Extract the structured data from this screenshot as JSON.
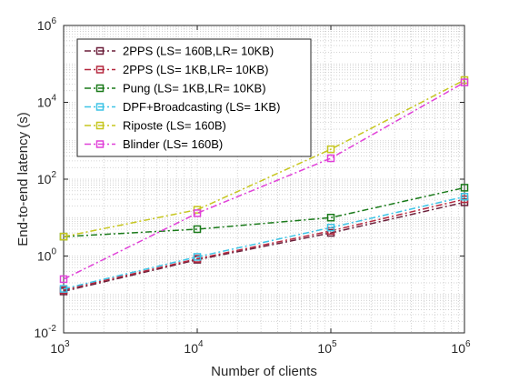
{
  "chart_data": {
    "type": "line",
    "title": "",
    "xlabel": "Number of clients",
    "ylabel": "End-to-end latency (s)",
    "x_scale": "log",
    "y_scale": "log",
    "xlim": [
      1000,
      1000000
    ],
    "ylim": [
      0.01,
      1000000
    ],
    "x_ticks": [
      {
        "base": "10",
        "exp": "3",
        "value": 1000
      },
      {
        "base": "10",
        "exp": "4",
        "value": 10000
      },
      {
        "base": "10",
        "exp": "5",
        "value": 100000
      },
      {
        "base": "10",
        "exp": "6",
        "value": 1000000
      }
    ],
    "y_ticks": [
      {
        "base": "10",
        "exp": "-2",
        "value": 0.01
      },
      {
        "base": "10",
        "exp": "0",
        "value": 1
      },
      {
        "base": "10",
        "exp": "2",
        "value": 100
      },
      {
        "base": "10",
        "exp": "4",
        "value": 10000
      },
      {
        "base": "10",
        "exp": "6",
        "value": 1000000
      }
    ],
    "grid": "minor-dotted",
    "legend_position": "top-left",
    "x": [
      1000,
      10000,
      100000,
      1000000
    ],
    "series": [
      {
        "name": "2PPS (LS= 160B,LR= 10KB)",
        "color": "#6b1f3a",
        "marker": "square",
        "line": "dash-dot",
        "values": [
          0.12,
          0.8,
          4.0,
          25.0
        ]
      },
      {
        "name": "2PPS (LS= 1KB,LR= 10KB)",
        "color": "#b5283f",
        "marker": "square",
        "line": "dash-dot",
        "values": [
          0.13,
          0.85,
          4.5,
          30.0
        ]
      },
      {
        "name": "Pung (LS= 1KB,LR= 10KB)",
        "color": "#1a7a1a",
        "marker": "square",
        "line": "dash-dot",
        "values": [
          3.2,
          5.0,
          10.0,
          60.0
        ]
      },
      {
        "name": "DPF+Broadcasting (LS= 1KB)",
        "color": "#3ec4e6",
        "marker": "square",
        "line": "dash-dot",
        "values": [
          0.14,
          0.95,
          5.5,
          35.0
        ]
      },
      {
        "name": "Riposte (LS= 160B)",
        "color": "#c6c61f",
        "marker": "square",
        "line": "dash-dot",
        "values": [
          3.2,
          16.0,
          600.0,
          38000.0
        ]
      },
      {
        "name": "Blinder (LS= 160B)",
        "color": "#e040d8",
        "marker": "square",
        "line": "dash-dot",
        "values": [
          0.25,
          13.0,
          350.0,
          33000.0
        ]
      }
    ]
  }
}
